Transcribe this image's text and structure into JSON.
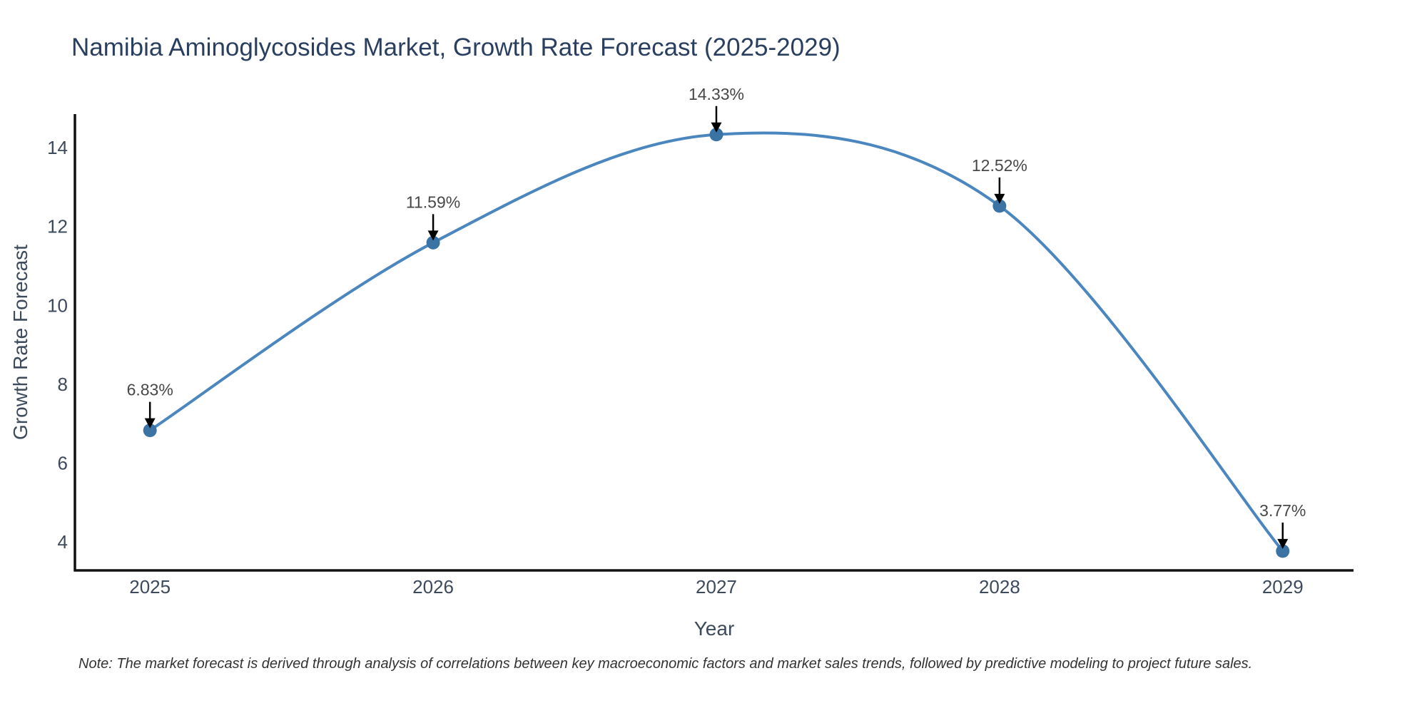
{
  "chart_data": {
    "type": "line",
    "title": "Namibia Aminoglycosides Market, Growth Rate Forecast (2025-2029)",
    "xlabel": "Year",
    "ylabel": "Growth Rate Forecast",
    "x": [
      2025,
      2026,
      2027,
      2028,
      2029
    ],
    "values": [
      6.83,
      11.59,
      14.33,
      12.52,
      3.77
    ],
    "point_labels": [
      "6.83%",
      "11.59%",
      "14.33%",
      "12.52%",
      "3.77%"
    ],
    "yticks": [
      4,
      6,
      8,
      10,
      12,
      14
    ],
    "xticks": [
      "2025",
      "2026",
      "2027",
      "2028",
      "2029"
    ],
    "ylim": [
      3.28,
      14.85
    ],
    "xlim": [
      2024.735,
      2029.25
    ],
    "grid": false,
    "legend_position": "none",
    "line_shape": "spline",
    "line_color": "#4b87be",
    "marker_color": "#3c73a5",
    "axis_color": "#111111",
    "arrow_color": "#000000",
    "note": "Note: The market forecast is derived through analysis of correlations between key macroeconomic factors and market sales trends, followed by predictive modeling to project future sales."
  }
}
